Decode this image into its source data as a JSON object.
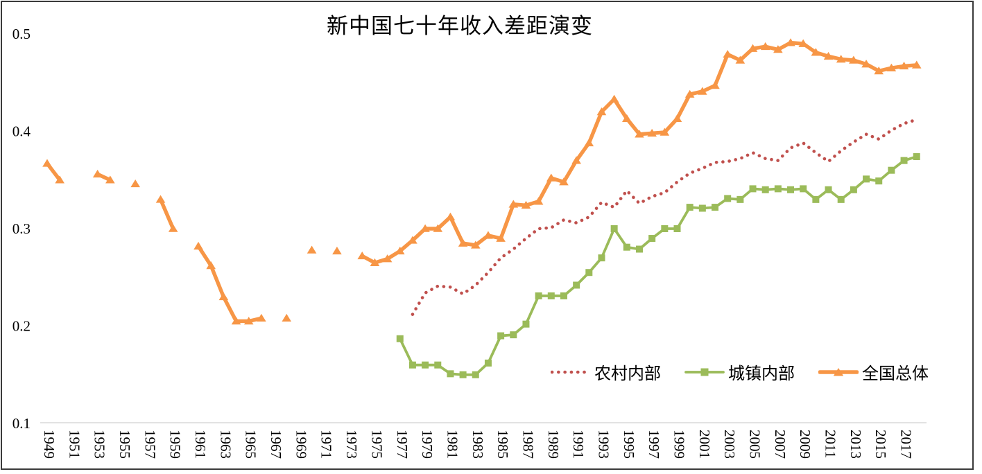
{
  "y_axis": {
    "tick_labels": [
      "0.5",
      "0.4",
      "0.3",
      "0.2",
      "0.1"
    ]
  },
  "x_axis": {
    "tick_labels": [
      "1949",
      "1951",
      "1953",
      "1955",
      "1957",
      "1959",
      "1961",
      "1963",
      "1965",
      "1967",
      "1969",
      "1971",
      "1973",
      "1975",
      "1977",
      "1979",
      "1981",
      "1983",
      "1985",
      "1987",
      "1989",
      "1991",
      "1993",
      "1995",
      "1997",
      "1999",
      "2001",
      "2003",
      "2005",
      "2007",
      "2009",
      "2011",
      "2013",
      "2015",
      "2017"
    ]
  },
  "chart_data": {
    "type": "line",
    "title": "新中国七十年收入差距演变",
    "xlabel": "",
    "ylabel": "",
    "ylim": [
      0.1,
      0.5
    ],
    "y_tick_step": 0.1,
    "grid": false,
    "axis_line_color": "#D9D9D9",
    "legend_position": "inside-bottom-right",
    "x_years": [
      1949,
      1950,
      1951,
      1952,
      1953,
      1954,
      1955,
      1956,
      1957,
      1958,
      1959,
      1960,
      1961,
      1962,
      1963,
      1964,
      1965,
      1966,
      1967,
      1968,
      1969,
      1970,
      1971,
      1972,
      1973,
      1974,
      1975,
      1976,
      1977,
      1978,
      1979,
      1980,
      1981,
      1982,
      1983,
      1984,
      1985,
      1986,
      1987,
      1988,
      1989,
      1990,
      1991,
      1992,
      1993,
      1994,
      1995,
      1996,
      1997,
      1998,
      1999,
      2000,
      2001,
      2002,
      2003,
      2004,
      2005,
      2006,
      2007,
      2008,
      2009,
      2010,
      2011,
      2012,
      2013,
      2014,
      2015,
      2016,
      2017,
      2018
    ],
    "series": [
      {
        "name": "农村内部",
        "color": "#C0504D",
        "line_style": "dotted",
        "marker": "none",
        "values": [
          null,
          null,
          null,
          null,
          null,
          null,
          null,
          null,
          null,
          null,
          null,
          null,
          null,
          null,
          null,
          null,
          null,
          null,
          null,
          null,
          null,
          null,
          null,
          null,
          null,
          null,
          null,
          null,
          null,
          0.212,
          0.234,
          0.241,
          0.24,
          0.233,
          0.242,
          0.255,
          0.27,
          0.279,
          0.29,
          0.3,
          0.301,
          0.309,
          0.306,
          0.312,
          0.327,
          0.322,
          0.339,
          0.326,
          0.333,
          0.337,
          0.348,
          0.357,
          0.362,
          0.368,
          0.369,
          0.372,
          0.378,
          0.372,
          0.37,
          0.383,
          0.388,
          0.378,
          0.369,
          0.38,
          0.389,
          0.397,
          0.392,
          0.401,
          0.408,
          0.412
        ]
      },
      {
        "name": "城镇内部",
        "color": "#9BBB59",
        "line_style": "solid",
        "marker": "square",
        "values": [
          null,
          null,
          null,
          null,
          null,
          null,
          null,
          null,
          null,
          null,
          null,
          null,
          null,
          null,
          null,
          null,
          null,
          null,
          null,
          null,
          null,
          null,
          null,
          null,
          null,
          null,
          null,
          null,
          0.187,
          0.16,
          0.16,
          0.16,
          0.151,
          0.15,
          0.15,
          0.162,
          0.19,
          0.191,
          0.202,
          0.231,
          0.231,
          0.231,
          0.242,
          0.255,
          0.27,
          0.3,
          0.281,
          0.279,
          0.29,
          0.3,
          0.3,
          0.322,
          0.321,
          0.322,
          0.331,
          0.33,
          0.341,
          0.34,
          0.341,
          0.34,
          0.341,
          0.33,
          0.34,
          0.33,
          0.34,
          0.351,
          0.349,
          0.36,
          0.37,
          0.374
        ]
      },
      {
        "name": "全国总体",
        "color": "#F79646",
        "line_style": "solid",
        "marker": "triangle",
        "values": [
          0.367,
          0.35,
          null,
          null,
          0.356,
          0.35,
          null,
          0.346,
          null,
          0.33,
          0.3,
          null,
          0.282,
          0.262,
          0.23,
          0.205,
          0.205,
          0.208,
          null,
          0.208,
          null,
          0.278,
          null,
          0.277,
          null,
          0.272,
          0.265,
          0.269,
          0.277,
          0.288,
          0.3,
          0.3,
          0.312,
          0.285,
          0.283,
          0.293,
          0.29,
          0.325,
          0.324,
          0.328,
          0.352,
          0.348,
          0.37,
          0.388,
          0.42,
          0.433,
          0.413,
          0.397,
          0.398,
          0.399,
          0.413,
          0.438,
          0.441,
          0.447,
          0.479,
          0.473,
          0.485,
          0.487,
          0.484,
          0.491,
          0.49,
          0.481,
          0.477,
          0.474,
          0.473,
          0.469,
          0.462,
          0.465,
          0.467,
          0.468
        ]
      }
    ]
  }
}
